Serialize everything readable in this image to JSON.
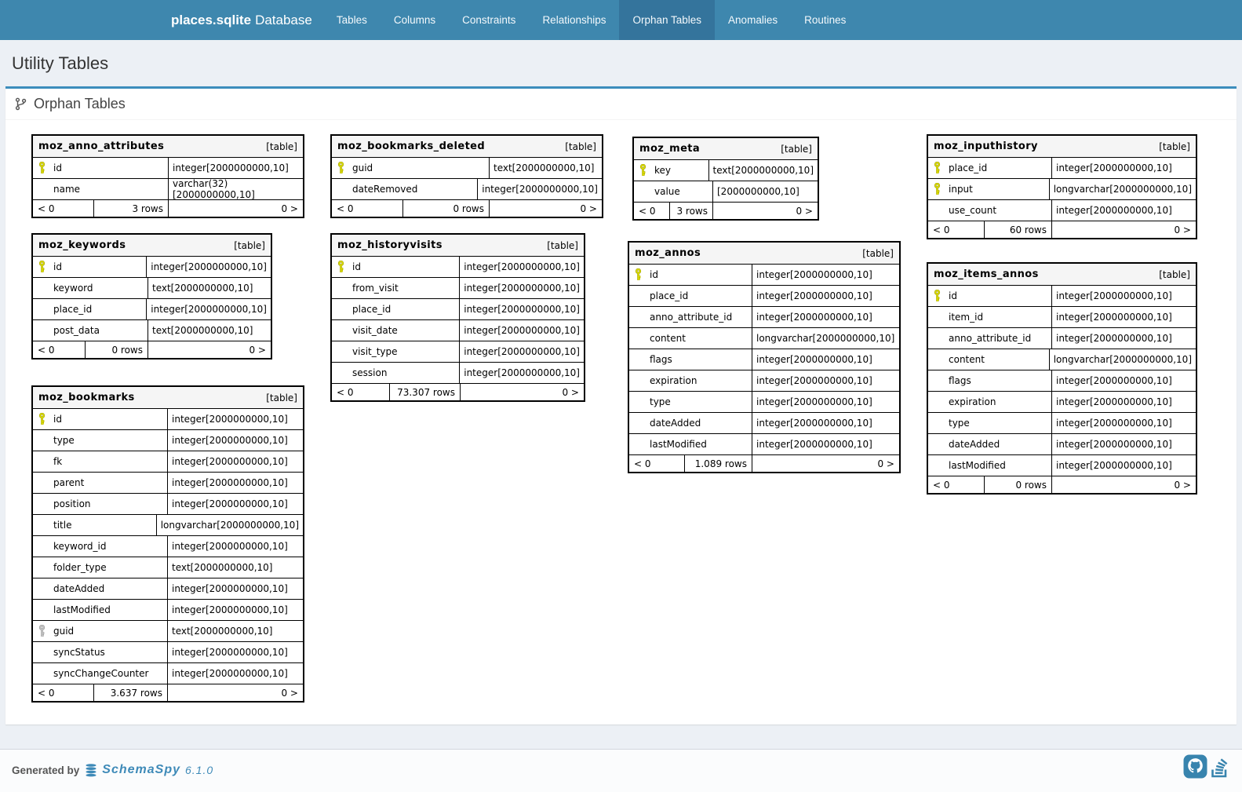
{
  "navbar": {
    "brand": {
      "name": "places.sqlite",
      "suffix": "Database"
    },
    "items": [
      "Tables",
      "Columns",
      "Constraints",
      "Relationships",
      "Orphan Tables",
      "Anomalies",
      "Routines"
    ],
    "active_item": "Orphan Tables"
  },
  "page": {
    "title": "Utility Tables"
  },
  "section": {
    "title": "Orphan Tables",
    "icon": "git-branch-icon"
  },
  "colors": {
    "navbar": "#3e87ae",
    "navbar_active": "#34749c",
    "panel_top_border": "#3c8dbc",
    "primary_key": "#dede00",
    "unique_key": "#c6c6c6",
    "link_blue": "#3e8ab8"
  },
  "tables": [
    {
      "name": "moz_anno_attributes",
      "badge": "[table]",
      "rows": [
        {
          "name": "id",
          "type": "integer[2000000000,10]",
          "key": "pk"
        },
        {
          "name": "name",
          "type": "varchar(32)[2000000000,10]",
          "key": null
        }
      ],
      "footer": {
        "prev": "< 0",
        "rows": "3 rows",
        "next": "0 >"
      }
    },
    {
      "name": "moz_bookmarks_deleted",
      "badge": "[table]",
      "rows": [
        {
          "name": "guid",
          "type": "text[2000000000,10]",
          "key": "pk"
        },
        {
          "name": "dateRemoved",
          "type": "integer[2000000000,10]",
          "key": null
        }
      ],
      "footer": {
        "prev": "< 0",
        "rows": "0 rows",
        "next": "0 >"
      }
    },
    {
      "name": "moz_meta",
      "badge": "[table]",
      "rows": [
        {
          "name": "key",
          "type": "text[2000000000,10]",
          "key": "pk"
        },
        {
          "name": "value",
          "type": "[2000000000,10]",
          "key": null
        }
      ],
      "footer": {
        "prev": "< 0",
        "rows": "3 rows",
        "next": "0 >"
      }
    },
    {
      "name": "moz_inputhistory",
      "badge": "[table]",
      "rows": [
        {
          "name": "place_id",
          "type": "integer[2000000000,10]",
          "key": "pk"
        },
        {
          "name": "input",
          "type": "longvarchar[2000000000,10]",
          "key": "pk"
        },
        {
          "name": "use_count",
          "type": "integer[2000000000,10]",
          "key": null
        }
      ],
      "footer": {
        "prev": "< 0",
        "rows": "60 rows",
        "next": "0 >"
      }
    },
    {
      "name": "moz_keywords",
      "badge": "[table]",
      "rows": [
        {
          "name": "id",
          "type": "integer[2000000000,10]",
          "key": "pk"
        },
        {
          "name": "keyword",
          "type": "text[2000000000,10]",
          "key": null
        },
        {
          "name": "place_id",
          "type": "integer[2000000000,10]",
          "key": null
        },
        {
          "name": "post_data",
          "type": "text[2000000000,10]",
          "key": null
        }
      ],
      "footer": {
        "prev": "< 0",
        "rows": "0 rows",
        "next": "0 >"
      }
    },
    {
      "name": "moz_historyvisits",
      "badge": "[table]",
      "rows": [
        {
          "name": "id",
          "type": "integer[2000000000,10]",
          "key": "pk"
        },
        {
          "name": "from_visit",
          "type": "integer[2000000000,10]",
          "key": null
        },
        {
          "name": "place_id",
          "type": "integer[2000000000,10]",
          "key": null
        },
        {
          "name": "visit_date",
          "type": "integer[2000000000,10]",
          "key": null
        },
        {
          "name": "visit_type",
          "type": "integer[2000000000,10]",
          "key": null
        },
        {
          "name": "session",
          "type": "integer[2000000000,10]",
          "key": null
        }
      ],
      "footer": {
        "prev": "< 0",
        "rows": "73.307 rows",
        "next": "0 >"
      }
    },
    {
      "name": "moz_annos",
      "badge": "[table]",
      "rows": [
        {
          "name": "id",
          "type": "integer[2000000000,10]",
          "key": "pk"
        },
        {
          "name": "place_id",
          "type": "integer[2000000000,10]",
          "key": null
        },
        {
          "name": "anno_attribute_id",
          "type": "integer[2000000000,10]",
          "key": null
        },
        {
          "name": "content",
          "type": "longvarchar[2000000000,10]",
          "key": null
        },
        {
          "name": "flags",
          "type": "integer[2000000000,10]",
          "key": null
        },
        {
          "name": "expiration",
          "type": "integer[2000000000,10]",
          "key": null
        },
        {
          "name": "type",
          "type": "integer[2000000000,10]",
          "key": null
        },
        {
          "name": "dateAdded",
          "type": "integer[2000000000,10]",
          "key": null
        },
        {
          "name": "lastModified",
          "type": "integer[2000000000,10]",
          "key": null
        }
      ],
      "footer": {
        "prev": "< 0",
        "rows": "1.089 rows",
        "next": "0 >"
      }
    },
    {
      "name": "moz_items_annos",
      "badge": "[table]",
      "rows": [
        {
          "name": "id",
          "type": "integer[2000000000,10]",
          "key": "pk"
        },
        {
          "name": "item_id",
          "type": "integer[2000000000,10]",
          "key": null
        },
        {
          "name": "anno_attribute_id",
          "type": "integer[2000000000,10]",
          "key": null
        },
        {
          "name": "content",
          "type": "longvarchar[2000000000,10]",
          "key": null
        },
        {
          "name": "flags",
          "type": "integer[2000000000,10]",
          "key": null
        },
        {
          "name": "expiration",
          "type": "integer[2000000000,10]",
          "key": null
        },
        {
          "name": "type",
          "type": "integer[2000000000,10]",
          "key": null
        },
        {
          "name": "dateAdded",
          "type": "integer[2000000000,10]",
          "key": null
        },
        {
          "name": "lastModified",
          "type": "integer[2000000000,10]",
          "key": null
        }
      ],
      "footer": {
        "prev": "< 0",
        "rows": "0 rows",
        "next": "0 >"
      }
    },
    {
      "name": "moz_bookmarks",
      "badge": "[table]",
      "rows": [
        {
          "name": "id",
          "type": "integer[2000000000,10]",
          "key": "pk"
        },
        {
          "name": "type",
          "type": "integer[2000000000,10]",
          "key": null
        },
        {
          "name": "fk",
          "type": "integer[2000000000,10]",
          "key": null
        },
        {
          "name": "parent",
          "type": "integer[2000000000,10]",
          "key": null
        },
        {
          "name": "position",
          "type": "integer[2000000000,10]",
          "key": null
        },
        {
          "name": "title",
          "type": "longvarchar[2000000000,10]",
          "key": null
        },
        {
          "name": "keyword_id",
          "type": "integer[2000000000,10]",
          "key": null
        },
        {
          "name": "folder_type",
          "type": "text[2000000000,10]",
          "key": null
        },
        {
          "name": "dateAdded",
          "type": "integer[2000000000,10]",
          "key": null
        },
        {
          "name": "lastModified",
          "type": "integer[2000000000,10]",
          "key": null
        },
        {
          "name": "guid",
          "type": "text[2000000000,10]",
          "key": "unique"
        },
        {
          "name": "syncStatus",
          "type": "integer[2000000000,10]",
          "key": null
        },
        {
          "name": "syncChangeCounter",
          "type": "integer[2000000000,10]",
          "key": null
        }
      ],
      "footer": {
        "prev": "< 0",
        "rows": "3.637 rows",
        "next": "0 >"
      }
    }
  ],
  "footer": {
    "generated_by": "Generated by",
    "tool_name": "SchemaSpy",
    "version": "6.1.0",
    "icons": [
      "database-icon",
      "github-icon",
      "stackoverflow-icon"
    ]
  }
}
